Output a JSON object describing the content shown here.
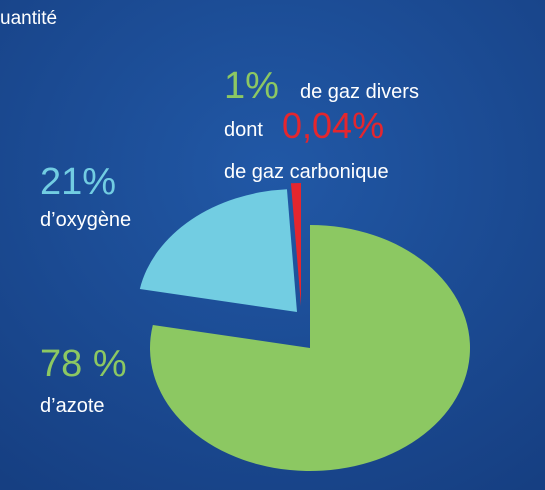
{
  "chart_data": {
    "type": "pie",
    "subtitle": "uantité",
    "categories": [
      "d’azote",
      "d’oxygène",
      "de gaz divers"
    ],
    "values": [
      78,
      21,
      1
    ],
    "value_labels": [
      "78 %",
      "21%",
      "1%"
    ],
    "colors": [
      "#8cc862",
      "#72cde2",
      "#e4262e"
    ],
    "annotations": [
      "dont",
      "0,04%",
      "de gaz carbonique"
    ],
    "annotation_color": "#e4262e"
  }
}
